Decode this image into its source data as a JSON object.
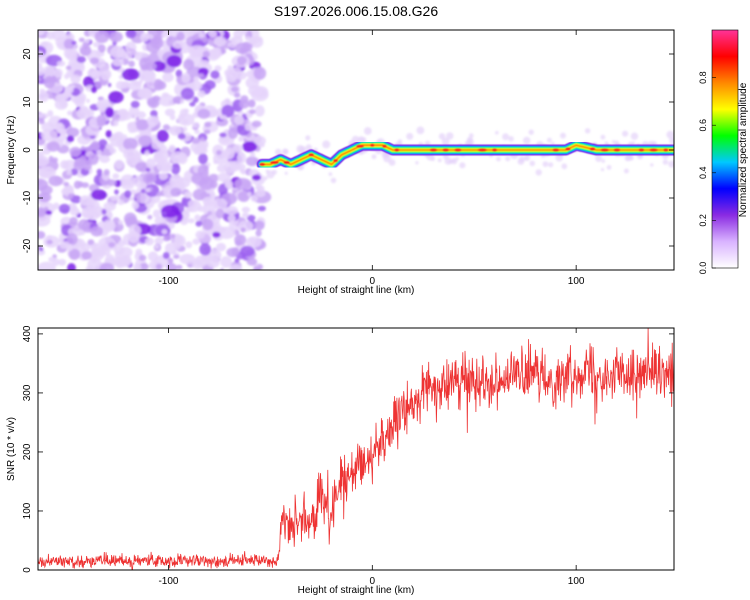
{
  "title": "S197.2026.006.15.08.G26",
  "chart_data": [
    {
      "type": "heatmap",
      "title": "S197.2026.006.15.08.G26",
      "xlabel": "Height of straight line (km)",
      "ylabel": "Frequency (Hz)",
      "xlim": [
        -164,
        148
      ],
      "ylim": [
        -25,
        25
      ],
      "xticks": [
        -100,
        0,
        100
      ],
      "yticks": [
        -20,
        -10,
        0,
        10,
        20
      ],
      "xtick_labels": [
        "-100",
        "0",
        "100"
      ],
      "ytick_labels": [
        "-20",
        "-10",
        "0",
        "10",
        "20"
      ],
      "noise_region_x": [
        -164,
        -54
      ],
      "signal_track": {
        "x": [
          -54,
          -50,
          -45,
          -40,
          -35,
          -30,
          -25,
          -20,
          -15,
          -10,
          -5,
          0,
          5,
          10,
          20,
          40,
          60,
          80,
          95,
          100,
          110,
          148
        ],
        "freq": [
          -3,
          -3,
          -2,
          -3,
          -2,
          -1,
          -2,
          -3,
          -1,
          0,
          1,
          1,
          1,
          0,
          0,
          0,
          0,
          0,
          0,
          1,
          0,
          0
        ]
      },
      "colorbar": {
        "label": "Normalized spectral amplitude",
        "range": [
          0,
          1
        ],
        "ticks": [
          0,
          0.2,
          0.4,
          0.6,
          0.8
        ],
        "tick_labels": [
          "0.0",
          "0.2",
          "0.4",
          "0.6",
          "0.8"
        ],
        "colors": [
          "#ffffff",
          "#d9b3ff",
          "#8a2be2",
          "#0000ff",
          "#00c8ff",
          "#00ff00",
          "#ffff00",
          "#ff8800",
          "#ff0000",
          "#ff3399"
        ]
      }
    },
    {
      "type": "line",
      "xlabel": "Height of straight line (km)",
      "ylabel": "SNR (10 * v/v)",
      "xlim": [
        -164,
        148
      ],
      "ylim": [
        0,
        410
      ],
      "xticks": [
        -100,
        0,
        100
      ],
      "yticks": [
        0,
        100,
        200,
        300,
        400
      ],
      "xtick_labels": [
        "-100",
        "0",
        "100"
      ],
      "ytick_labels": [
        "0",
        "100",
        "200",
        "300",
        "400"
      ],
      "series": [
        {
          "name": "SNR",
          "color": "#ee3333",
          "envelope": {
            "x": [
              -164,
              -150,
              -120,
              -90,
              -60,
              -46,
              -44,
              -42,
              -35,
              -30,
              -25,
              -20,
              -15,
              -10,
              -5,
              0,
              5,
              10,
              15,
              20,
              25,
              30,
              40,
              50,
              60,
              70,
              80,
              90,
              100,
              105,
              110,
              120,
              130,
              140,
              148
            ],
            "y": [
              15,
              15,
              15,
              15,
              16,
              18,
              95,
              75,
              75,
              85,
              120,
              100,
              160,
              150,
              180,
              200,
              220,
              240,
              265,
              285,
              300,
              305,
              315,
              325,
              320,
              330,
              330,
              320,
              335,
              345,
              330,
              330,
              335,
              325,
              330
            ]
          },
          "noise_amplitude": {
            "x": [
              -164,
              -46,
              -44,
              -20,
              0,
              30,
              148
            ],
            "y": [
              7,
              8,
              25,
              35,
              28,
              28,
              28
            ]
          }
        }
      ]
    }
  ]
}
